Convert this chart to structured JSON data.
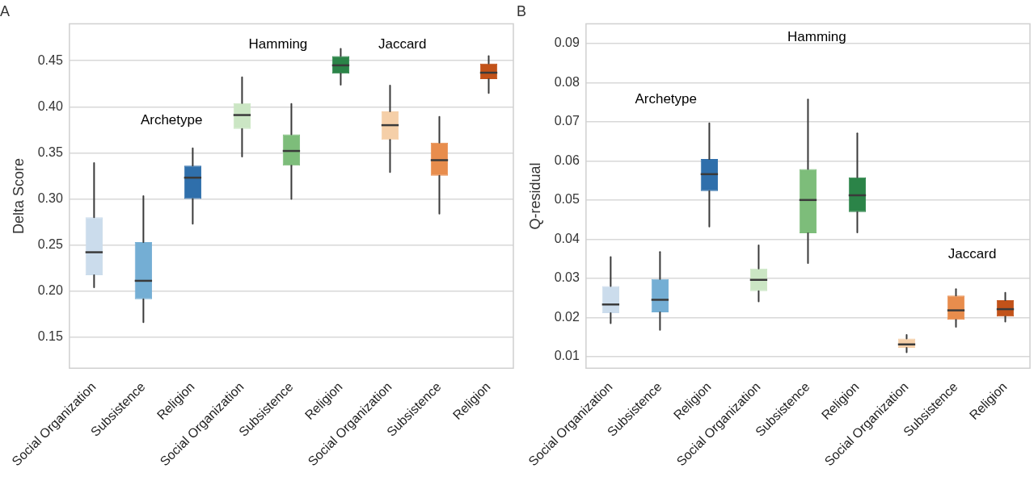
{
  "chart_data": [
    {
      "type": "box",
      "title": "A",
      "ylabel": "Delta Score",
      "categories": [
        "Social Organization",
        "Subsistence",
        "Religion",
        "Social Organization",
        "Subsistence",
        "Religion",
        "Social Organization",
        "Subsistence",
        "Religion"
      ],
      "colors": [
        "#cbdcec",
        "#74aed4",
        "#2f6fab",
        "#cbe6c4",
        "#7dbd7a",
        "#2b8448",
        "#f5cfa8",
        "#e88d4d",
        "#c25219"
      ],
      "boxes": [
        {
          "low": 0.204,
          "q1": 0.217,
          "median": 0.242,
          "q3": 0.28,
          "high": 0.339
        },
        {
          "low": 0.166,
          "q1": 0.191,
          "median": 0.211,
          "q3": 0.253,
          "high": 0.303
        },
        {
          "low": 0.273,
          "q1": 0.3,
          "median": 0.323,
          "q3": 0.336,
          "high": 0.355
        },
        {
          "low": 0.346,
          "q1": 0.376,
          "median": 0.391,
          "q3": 0.404,
          "high": 0.432
        },
        {
          "low": 0.3,
          "q1": 0.336,
          "median": 0.352,
          "q3": 0.37,
          "high": 0.403
        },
        {
          "low": 0.424,
          "q1": 0.436,
          "median": 0.445,
          "q3": 0.455,
          "high": 0.463
        },
        {
          "low": 0.329,
          "q1": 0.364,
          "median": 0.38,
          "q3": 0.395,
          "high": 0.423
        },
        {
          "low": 0.284,
          "q1": 0.325,
          "median": 0.342,
          "q3": 0.361,
          "high": 0.389
        },
        {
          "low": 0.415,
          "q1": 0.43,
          "median": 0.437,
          "q3": 0.447,
          "high": 0.455
        }
      ],
      "ylim": [
        0.116,
        0.49
      ],
      "yticks": [
        0.15,
        {
          "value": 0.2,
          "label": "0.20"
        },
        0.25,
        {
          "value": 0.3,
          "label": "0.30"
        },
        0.35,
        {
          "value": 0.4,
          "label": "0.40"
        },
        0.45
      ],
      "grid": "y",
      "annotations": [
        "Archetype",
        "Hamming",
        "Jaccard"
      ]
    },
    {
      "type": "box",
      "title": "B",
      "ylabel": "Q-residual",
      "categories": [
        "Social Organization",
        "Subsistence",
        "Religion",
        "Social Organization",
        "Subsistence",
        "Religion",
        "Social Organization",
        "Subsistence",
        "Religion"
      ],
      "colors": [
        "#cbdcec",
        "#74aed4",
        "#2f6fab",
        "#cbe6c4",
        "#7dbd7a",
        "#2b8448",
        "#f5cfa8",
        "#e88d4d",
        "#c25219"
      ],
      "boxes": [
        {
          "low": 0.0185,
          "q1": 0.0211,
          "median": 0.0233,
          "q3": 0.028,
          "high": 0.0354
        },
        {
          "low": 0.0168,
          "q1": 0.0213,
          "median": 0.0245,
          "q3": 0.0298,
          "high": 0.0367
        },
        {
          "low": 0.0432,
          "q1": 0.0523,
          "median": 0.0566,
          "q3": 0.0605,
          "high": 0.0696
        },
        {
          "low": 0.0241,
          "q1": 0.0267,
          "median": 0.0296,
          "q3": 0.0325,
          "high": 0.0384
        },
        {
          "low": 0.0339,
          "q1": 0.0415,
          "median": 0.05,
          "q3": 0.0579,
          "high": 0.0757
        },
        {
          "low": 0.0417,
          "q1": 0.0469,
          "median": 0.0512,
          "q3": 0.0558,
          "high": 0.067
        },
        {
          "low": 0.0111,
          "q1": 0.0122,
          "median": 0.0131,
          "q3": 0.0146,
          "high": 0.0155
        },
        {
          "low": 0.0176,
          "q1": 0.0194,
          "median": 0.0218,
          "q3": 0.0256,
          "high": 0.0272
        },
        {
          "low": 0.0189,
          "q1": 0.0202,
          "median": 0.0221,
          "q3": 0.0244,
          "high": 0.0263
        }
      ],
      "ylim": [
        0.007,
        0.095
      ],
      "yticks": [
        0.01,
        0.02,
        0.03,
        0.04,
        0.05,
        0.06,
        0.07,
        0.08,
        0.09
      ],
      "grid": "y",
      "annotations": [
        "Archetype",
        "Hamming",
        "Jaccard"
      ]
    }
  ]
}
